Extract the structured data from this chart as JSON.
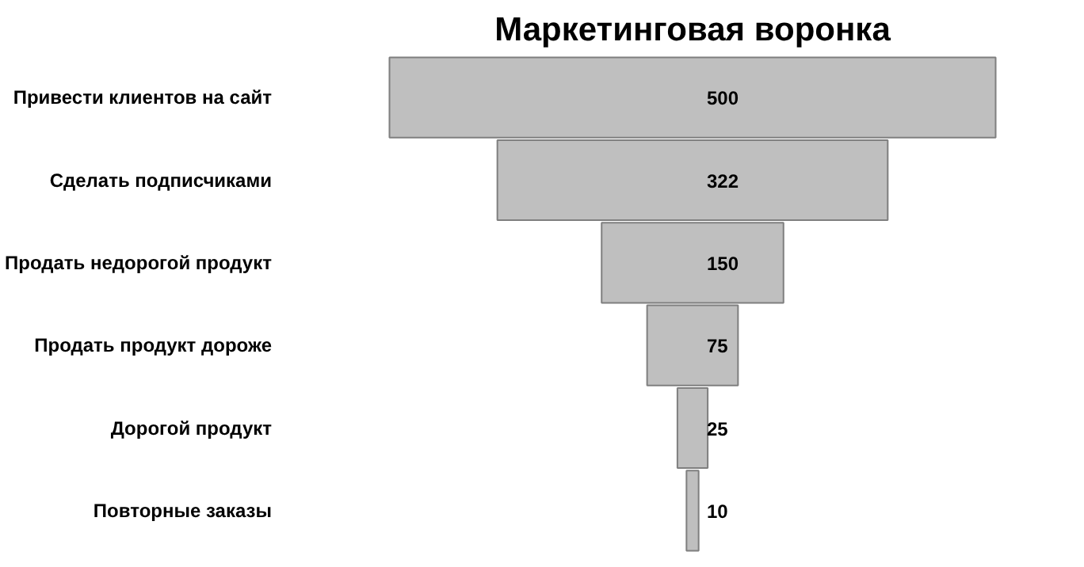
{
  "chart_data": {
    "type": "other",
    "title": "Маркетинговая воронка",
    "categories": [
      "Привести клиентов на сайт",
      "Сделать подписчиками",
      "Продать недорогой продукт",
      "Продать продукт дороже",
      "Дорогой продукт",
      "Повторные заказы"
    ],
    "values": [
      500,
      322,
      150,
      75,
      25,
      10
    ],
    "color": "#bfbfbf",
    "data_labels": true
  }
}
